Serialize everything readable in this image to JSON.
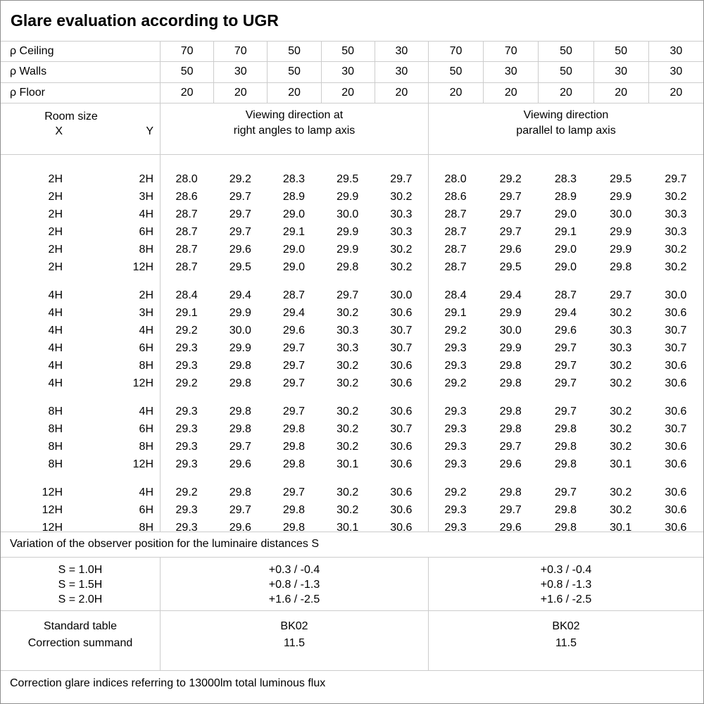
{
  "title": "Glare evaluation according to UGR",
  "colors": {
    "background": "#ffffff",
    "text": "#000000",
    "grid_line": "#cccccc",
    "outer_border": "#8f8f8f"
  },
  "reflectances": {
    "rows": [
      {
        "label": "ρ Ceiling",
        "values": [
          "70",
          "70",
          "50",
          "50",
          "30",
          "70",
          "70",
          "50",
          "50",
          "30"
        ]
      },
      {
        "label": "ρ Walls",
        "values": [
          "50",
          "30",
          "50",
          "30",
          "30",
          "50",
          "30",
          "50",
          "30",
          "30"
        ]
      },
      {
        "label": "ρ Floor",
        "values": [
          "20",
          "20",
          "20",
          "20",
          "20",
          "20",
          "20",
          "20",
          "20",
          "20"
        ]
      }
    ]
  },
  "room_size": {
    "title": "Room size",
    "x_label": "X",
    "y_label": "Y"
  },
  "directions": {
    "left_line1": "Viewing direction at",
    "left_line2": "right angles to lamp axis",
    "right_line1": "Viewing direction",
    "right_line2": "parallel to lamp axis"
  },
  "ugr": {
    "groups": [
      {
        "rows": [
          {
            "x": "2H",
            "y": "2H",
            "values": [
              "28.0",
              "29.2",
              "28.3",
              "29.5",
              "29.7",
              "28.0",
              "29.2",
              "28.3",
              "29.5",
              "29.7"
            ]
          },
          {
            "x": "2H",
            "y": "3H",
            "values": [
              "28.6",
              "29.7",
              "28.9",
              "29.9",
              "30.2",
              "28.6",
              "29.7",
              "28.9",
              "29.9",
              "30.2"
            ]
          },
          {
            "x": "2H",
            "y": "4H",
            "values": [
              "28.7",
              "29.7",
              "29.0",
              "30.0",
              "30.3",
              "28.7",
              "29.7",
              "29.0",
              "30.0",
              "30.3"
            ]
          },
          {
            "x": "2H",
            "y": "6H",
            "values": [
              "28.7",
              "29.7",
              "29.1",
              "29.9",
              "30.3",
              "28.7",
              "29.7",
              "29.1",
              "29.9",
              "30.3"
            ]
          },
          {
            "x": "2H",
            "y": "8H",
            "values": [
              "28.7",
              "29.6",
              "29.0",
              "29.9",
              "30.2",
              "28.7",
              "29.6",
              "29.0",
              "29.9",
              "30.2"
            ]
          },
          {
            "x": "2H",
            "y": "12H",
            "values": [
              "28.7",
              "29.5",
              "29.0",
              "29.8",
              "30.2",
              "28.7",
              "29.5",
              "29.0",
              "29.8",
              "30.2"
            ]
          }
        ]
      },
      {
        "rows": [
          {
            "x": "4H",
            "y": "2H",
            "values": [
              "28.4",
              "29.4",
              "28.7",
              "29.7",
              "30.0",
              "28.4",
              "29.4",
              "28.7",
              "29.7",
              "30.0"
            ]
          },
          {
            "x": "4H",
            "y": "3H",
            "values": [
              "29.1",
              "29.9",
              "29.4",
              "30.2",
              "30.6",
              "29.1",
              "29.9",
              "29.4",
              "30.2",
              "30.6"
            ]
          },
          {
            "x": "4H",
            "y": "4H",
            "values": [
              "29.2",
              "30.0",
              "29.6",
              "30.3",
              "30.7",
              "29.2",
              "30.0",
              "29.6",
              "30.3",
              "30.7"
            ]
          },
          {
            "x": "4H",
            "y": "6H",
            "values": [
              "29.3",
              "29.9",
              "29.7",
              "30.3",
              "30.7",
              "29.3",
              "29.9",
              "29.7",
              "30.3",
              "30.7"
            ]
          },
          {
            "x": "4H",
            "y": "8H",
            "values": [
              "29.3",
              "29.8",
              "29.7",
              "30.2",
              "30.6",
              "29.3",
              "29.8",
              "29.7",
              "30.2",
              "30.6"
            ]
          },
          {
            "x": "4H",
            "y": "12H",
            "values": [
              "29.2",
              "29.8",
              "29.7",
              "30.2",
              "30.6",
              "29.2",
              "29.8",
              "29.7",
              "30.2",
              "30.6"
            ]
          }
        ]
      },
      {
        "rows": [
          {
            "x": "8H",
            "y": "4H",
            "values": [
              "29.3",
              "29.8",
              "29.7",
              "30.2",
              "30.6",
              "29.3",
              "29.8",
              "29.7",
              "30.2",
              "30.6"
            ]
          },
          {
            "x": "8H",
            "y": "6H",
            "values": [
              "29.3",
              "29.8",
              "29.8",
              "30.2",
              "30.7",
              "29.3",
              "29.8",
              "29.8",
              "30.2",
              "30.7"
            ]
          },
          {
            "x": "8H",
            "y": "8H",
            "values": [
              "29.3",
              "29.7",
              "29.8",
              "30.2",
              "30.6",
              "29.3",
              "29.7",
              "29.8",
              "30.2",
              "30.6"
            ]
          },
          {
            "x": "8H",
            "y": "12H",
            "values": [
              "29.3",
              "29.6",
              "29.8",
              "30.1",
              "30.6",
              "29.3",
              "29.6",
              "29.8",
              "30.1",
              "30.6"
            ]
          }
        ]
      },
      {
        "rows": [
          {
            "x": "12H",
            "y": "4H",
            "values": [
              "29.2",
              "29.8",
              "29.7",
              "30.2",
              "30.6",
              "29.2",
              "29.8",
              "29.7",
              "30.2",
              "30.6"
            ]
          },
          {
            "x": "12H",
            "y": "6H",
            "values": [
              "29.3",
              "29.7",
              "29.8",
              "30.2",
              "30.6",
              "29.3",
              "29.7",
              "29.8",
              "30.2",
              "30.6"
            ]
          },
          {
            "x": "12H",
            "y": "8H",
            "values": [
              "29.3",
              "29.6",
              "29.8",
              "30.1",
              "30.6",
              "29.3",
              "29.6",
              "29.8",
              "30.1",
              "30.6"
            ]
          }
        ]
      }
    ]
  },
  "variation_note": "Variation of the observer position for the luminaire distances S",
  "observer_variation": {
    "labels": [
      {
        "text": "S = 1.0H"
      },
      {
        "text": "S = 1.5H"
      },
      {
        "text": "S = 2.0H"
      }
    ],
    "left_values": [
      {
        "text": "+0.3 / -0.4"
      },
      {
        "text": "+0.8 / -1.3"
      },
      {
        "text": "+1.6 / -2.5"
      }
    ],
    "right_values": [
      {
        "text": "+0.3 / -0.4"
      },
      {
        "text": "+0.8 / -1.3"
      },
      {
        "text": "+1.6 / -2.5"
      }
    ]
  },
  "summary": {
    "labels": [
      {
        "text": "Standard table"
      },
      {
        "text": "Correction summand"
      }
    ],
    "left_values": [
      {
        "text": "BK02"
      },
      {
        "text": "11.5"
      }
    ],
    "right_values": [
      {
        "text": "BK02"
      },
      {
        "text": "11.5"
      }
    ]
  },
  "footer_note": "Correction glare indices referring to 13000lm total luminous flux"
}
